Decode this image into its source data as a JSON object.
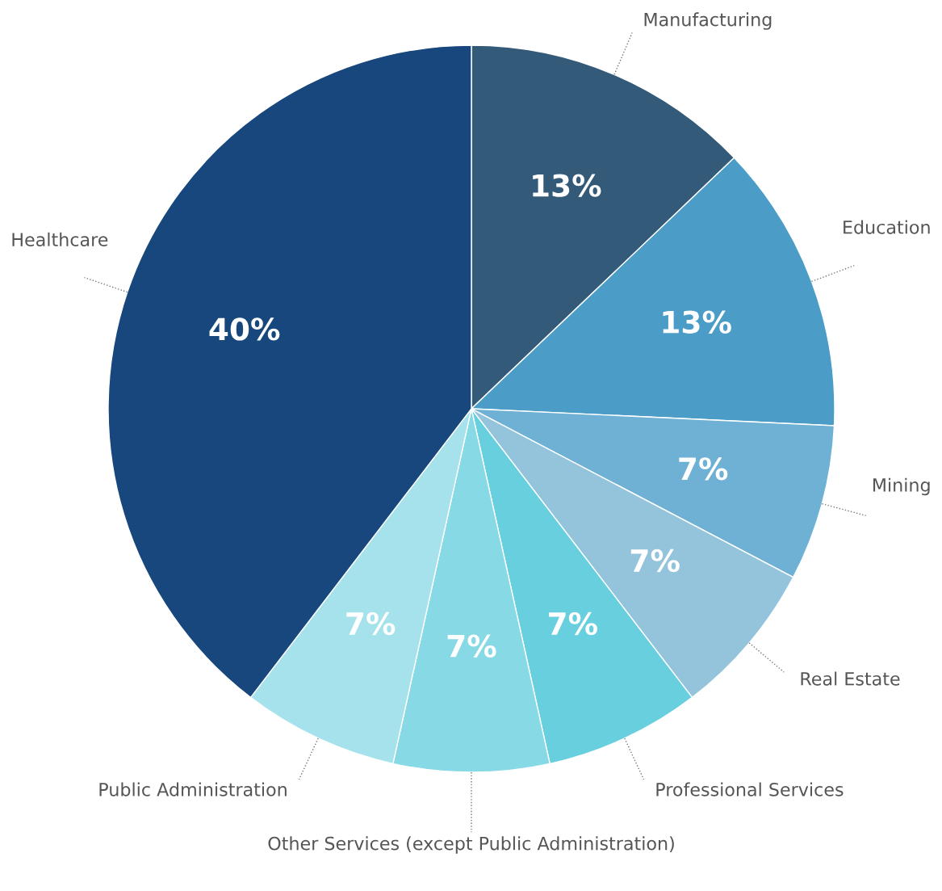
{
  "chart_data": {
    "type": "pie",
    "categories": [
      "Manufacturing",
      "Education",
      "Mining",
      "Real Estate",
      "Professional Services",
      "Other Services (except Public Administration)",
      "Public Administration",
      "Healthcare"
    ],
    "values": [
      13,
      13,
      7,
      7,
      7,
      7,
      7,
      40
    ],
    "colors": [
      "#345a7a",
      "#4b9dc8",
      "#6fb1d4",
      "#94c4dc",
      "#67cfdd",
      "#87d9e5",
      "#a5e2eb",
      "#17477d"
    ],
    "value_labels": [
      "13%",
      "13%",
      "7%",
      "7%",
      "7%",
      "7%",
      "7%",
      "40%"
    ]
  }
}
